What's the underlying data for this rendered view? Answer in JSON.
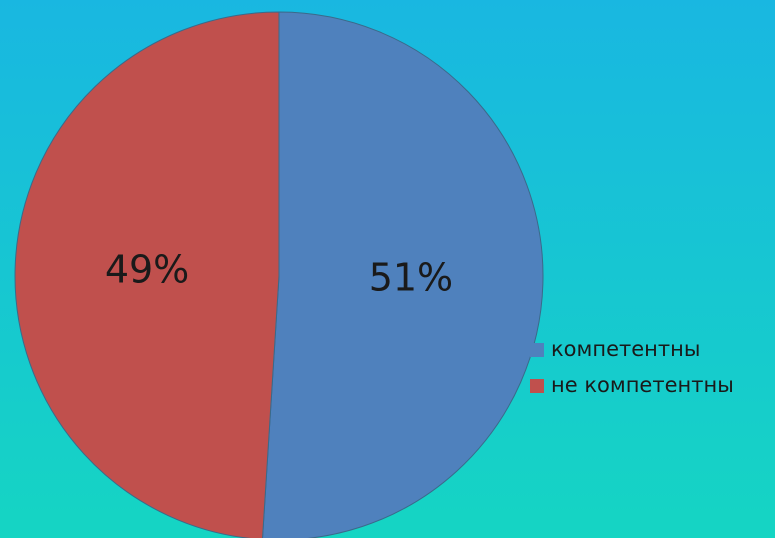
{
  "chart_data": {
    "type": "pie",
    "categories": [
      "компетентны",
      "не компетентны"
    ],
    "values": [
      51,
      49
    ],
    "value_labels": [
      "51%",
      "49%"
    ],
    "colors": [
      "#4f81bd",
      "#c0504d"
    ],
    "legend": "right"
  }
}
